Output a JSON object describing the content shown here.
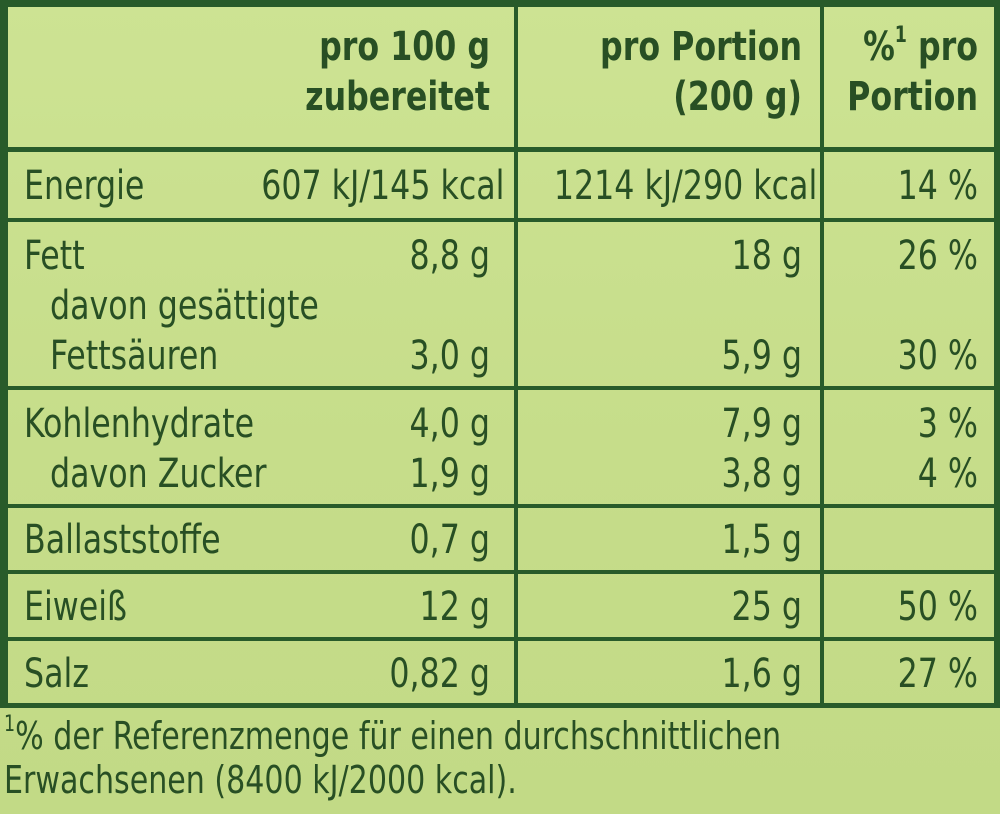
{
  "table": {
    "header": {
      "col1_line1": "pro 100 g",
      "col1_line2": "zubereitet",
      "col2_line1": "pro Portion",
      "col2_line2": "(200 g)",
      "col3_prefix": "%",
      "col3_sup": "1",
      "col3_suffix": " pro",
      "col3_line2": "Portion"
    },
    "rows": {
      "energie": {
        "label": "Energie",
        "per100": "607 kJ/145 kcal",
        "portion": "1214 kJ/290 kcal",
        "pct": "14 %"
      },
      "fett": {
        "label": "Fett",
        "per100": "8,8 g",
        "portion": "18 g",
        "pct": "26 %"
      },
      "fett_sub": {
        "label_line1": "davon gesättigte",
        "label_line2": "Fettsäuren",
        "per100": "3,0 g",
        "portion": "5,9 g",
        "pct": "30 %"
      },
      "kohlenhydrate": {
        "label": "Kohlenhydrate",
        "per100": "4,0 g",
        "portion": "7,9 g",
        "pct": "3 %"
      },
      "zucker": {
        "label": "davon Zucker",
        "per100": "1,9 g",
        "portion": "3,8 g",
        "pct": "4 %"
      },
      "ballaststoffe": {
        "label": "Ballaststoffe",
        "per100": "0,7 g",
        "portion": "1,5 g",
        "pct": ""
      },
      "eiweiss": {
        "label": "Eiweiß",
        "per100": "12 g",
        "portion": "25 g",
        "pct": "50 %"
      },
      "salz": {
        "label": "Salz",
        "per100": "0,82 g",
        "portion": "1,6 g",
        "pct": "27 %"
      }
    }
  },
  "footnote": {
    "marker": "1",
    "line1": "% der Referenzmenge für einen durchschnittlichen",
    "line2": "Erwachsenen (8400 kJ/2000 kcal)."
  },
  "colors": {
    "background": "#c9df8f",
    "lines_text": "#285b2a"
  }
}
